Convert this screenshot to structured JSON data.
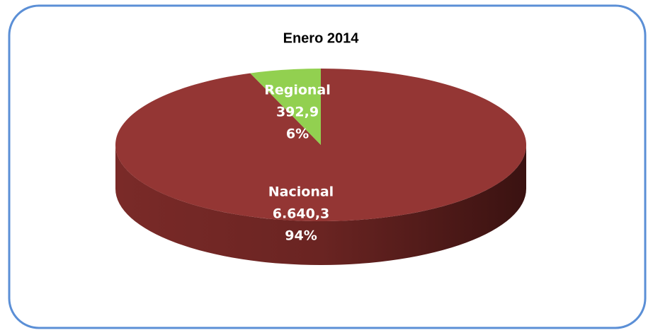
{
  "chart_data": {
    "type": "pie",
    "title": "Enero 2014",
    "categories": [
      "Nacional",
      "Regional"
    ],
    "values": [
      6640.3,
      392.9
    ],
    "value_labels": [
      "6.640,3",
      "392,9"
    ],
    "percents": [
      {
        "value": 94,
        "label": "94%"
      },
      {
        "value": 6,
        "label": "6%"
      }
    ],
    "colors": [
      "#943634",
      "#92d050"
    ]
  }
}
